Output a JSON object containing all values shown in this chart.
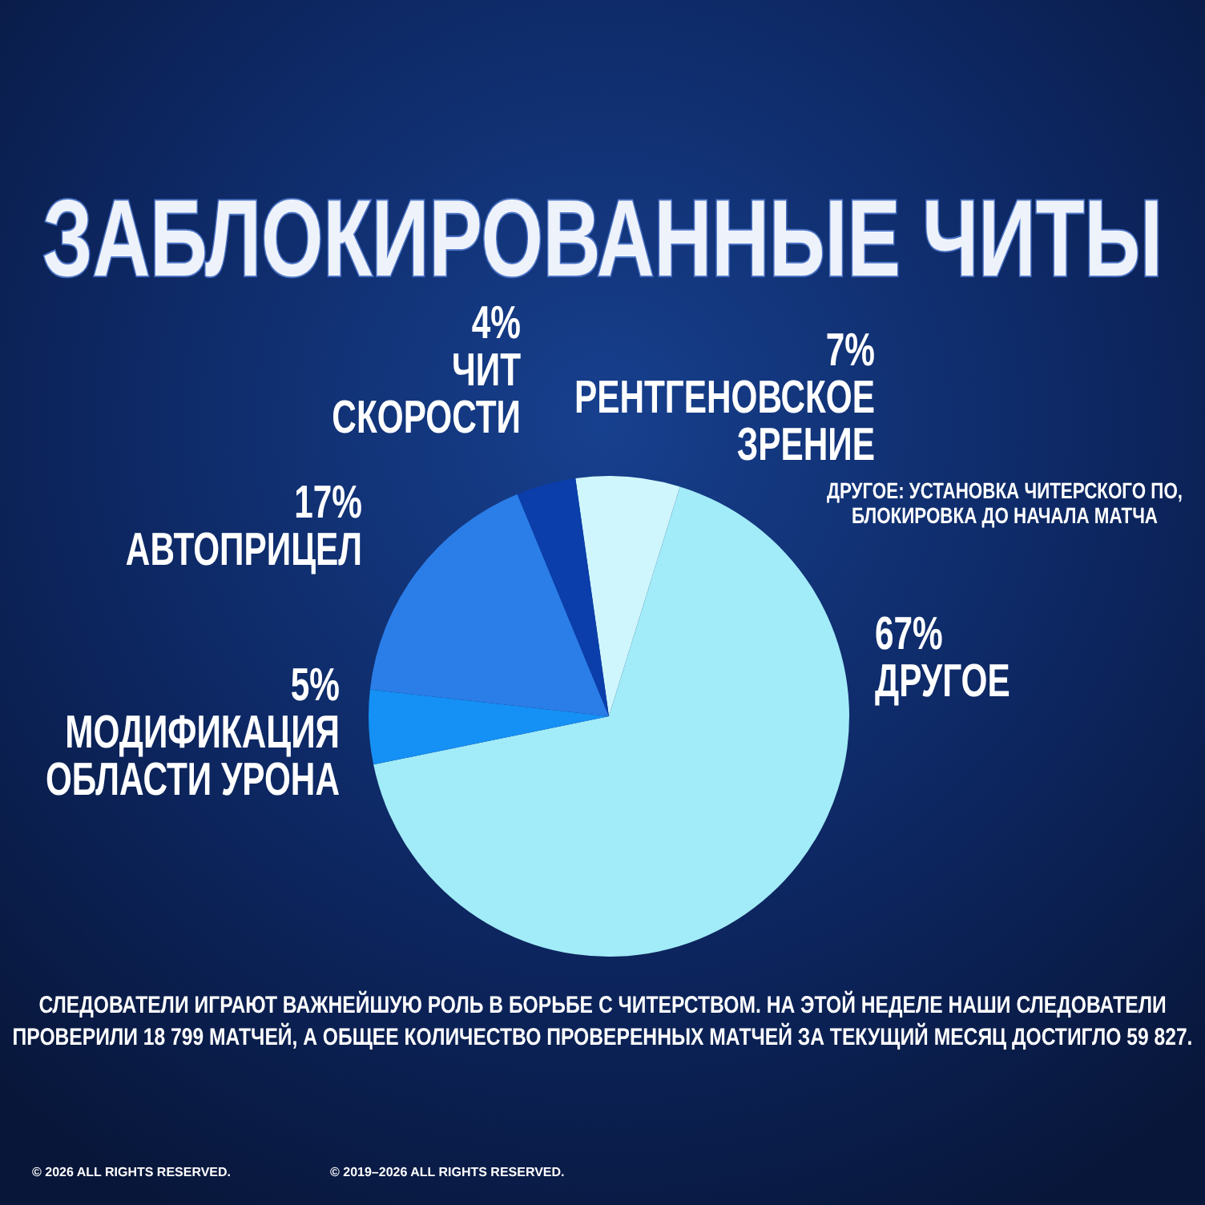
{
  "chart_data": {
    "type": "pie",
    "title": "ЗАБЛОКИРОВАННЫЕ ЧИТЫ",
    "categories": [
      "РЕНТГЕНОВСКОЕ\nЗРЕНИЕ",
      "ДРУГОЕ",
      "МОДИФИКАЦИЯ\nОБЛАСТИ УРОНА",
      "АВТОПРИЦЕЛ",
      "ЧИТ\nСКОРОСТИ"
    ],
    "values": [
      7,
      67,
      5,
      17,
      4
    ],
    "colors": [
      "#cff6fc",
      "#a2ebf8",
      "#1590f4",
      "#2b7de8",
      "#0b3eab"
    ],
    "value_labels": [
      "7%",
      "67%",
      "5%",
      "17%",
      "4%"
    ],
    "annotations": [
      "ДРУГОЕ: УСТАНОВКА ЧИТЕРСКОГО ПО,\nБЛОКИРОВКА ДО НАЧАЛА МАТЧА",
      "СЛЕДОВАТЕЛИ ИГРАЮТ ВАЖНЕЙШУЮ РОЛЬ В БОРЬБЕ С ЧИТЕРСТВОМ. НА ЭТОЙ НЕДЕЛЕ НАШИ СЛЕДОВАТЕЛИ\nПРОВЕРИЛИ 18 799 МАТЧЕЙ, А ОБЩЕЕ КОЛИЧЕСТВО ПРОВЕРЕННЫХ МАТЧЕЙ ЗА ТЕКУЩИЙ МЕСЯЦ ДОСТИГЛО 59 827.",
      "© 2026 ALL RIGHTS RESERVED.",
      "© 2019–2026 ALL RIGHTS RESERVED."
    ]
  }
}
